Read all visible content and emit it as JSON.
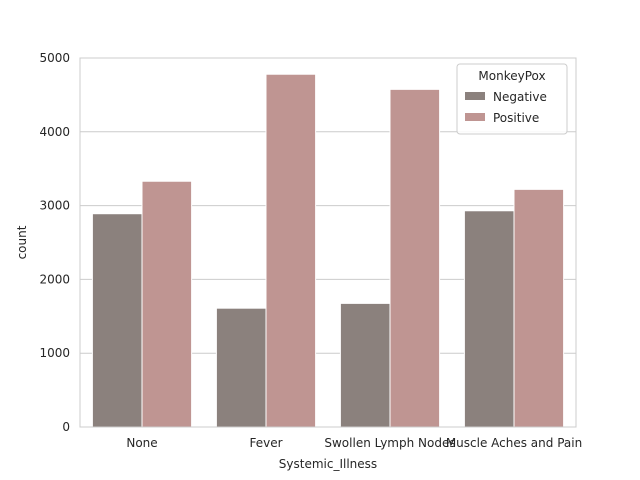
{
  "chart_data": {
    "type": "bar",
    "title": "",
    "xlabel": "Systemic_Illness",
    "ylabel": "count",
    "categories": [
      "None",
      "Fever",
      "Swollen Lymph Nodes",
      "Muscle Aches and Pain"
    ],
    "series": [
      {
        "name": "Negative",
        "values": [
          2890,
          1610,
          1675,
          2930
        ],
        "color": "#8b817d"
      },
      {
        "name": "Positive",
        "values": [
          3330,
          4780,
          4575,
          3220
        ],
        "color": "#bf9592"
      }
    ],
    "ylim": [
      0,
      5000
    ],
    "yticks": [
      0,
      1000,
      2000,
      3000,
      4000,
      5000
    ],
    "grid": "horizontal",
    "legend": {
      "title": "MonkeyPox",
      "position": "top-right"
    }
  }
}
